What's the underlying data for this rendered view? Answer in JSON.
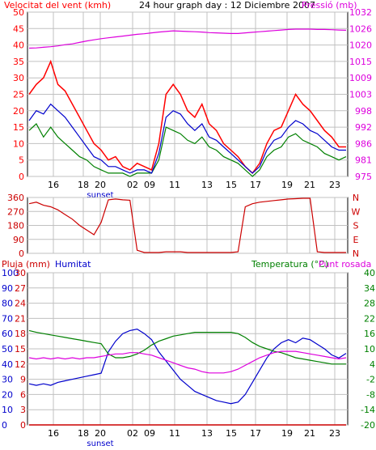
{
  "header": {
    "wind_label": "Velocitat del vent (kmh)",
    "title": "24 hour graph day : 12 Diciembre 2007",
    "pressure_label": "Pressió (mb)"
  },
  "colors": {
    "wind": "#ff0000",
    "gust": "#008000",
    "wind_avg": "#0000cc",
    "pressure": "#dd00dd",
    "direction": "#cc0000",
    "rain": "#cc0000",
    "humidity": "#0000cc",
    "temperature": "#008000",
    "dewpoint": "#dd00dd",
    "grid": "#c0c0c0"
  },
  "chart_data": [
    {
      "type": "line",
      "name": "wind-pressure",
      "x_ticks": [
        "16",
        "18",
        "20",
        "02",
        "09",
        "11",
        "13",
        "15",
        "17",
        "19",
        "21",
        "23"
      ],
      "x_marker": "sunset",
      "ylim_left": [
        0,
        50
      ],
      "yticks_left": [
        0,
        5,
        10,
        15,
        20,
        25,
        30,
        35,
        40,
        45,
        50
      ],
      "ylim_right": [
        975,
        1032
      ],
      "yticks_right": [
        975,
        981,
        986,
        992,
        998,
        1003,
        1009,
        1015,
        1020,
        1026,
        1032
      ],
      "series": [
        {
          "values": [
            25,
            28,
            30,
            35,
            28,
            26,
            22,
            18,
            14,
            10,
            8,
            5,
            6,
            3,
            2,
            4,
            3,
            2,
            10,
            25,
            28,
            25,
            20,
            18,
            22,
            16,
            14,
            10,
            8,
            6,
            3,
            1,
            4,
            10,
            14,
            15,
            20,
            25,
            22,
            20,
            17,
            14,
            12,
            9,
            9
          ]
        },
        {
          "values": [
            14,
            16,
            12,
            15,
            12,
            10,
            8,
            6,
            5,
            3,
            2,
            1,
            1,
            1,
            0,
            1,
            1,
            1,
            5,
            15,
            14,
            13,
            11,
            10,
            12,
            9,
            8,
            6,
            5,
            4,
            2,
            0,
            2,
            6,
            8,
            9,
            12,
            13,
            11,
            10,
            9,
            7,
            6,
            5,
            6
          ]
        },
        {
          "values": [
            17,
            20,
            19,
            22,
            20,
            18,
            15,
            12,
            9,
            6,
            5,
            3,
            3,
            2,
            1,
            2,
            2,
            1,
            7,
            18,
            20,
            19,
            16,
            14,
            16,
            12,
            11,
            9,
            7,
            5,
            3,
            1,
            3,
            8,
            11,
            12,
            15,
            17,
            16,
            14,
            13,
            11,
            9,
            8,
            8
          ]
        },
        {
          "values": [
            1019.5,
            1019.6,
            1019.8,
            1020.0,
            1020.3,
            1020.7,
            1021.0,
            1021.5,
            1022.0,
            1022.4,
            1022.8,
            1023.1,
            1023.4,
            1023.7,
            1024.0,
            1024.3,
            1024.5,
            1024.8,
            1025.1,
            1025.3,
            1025.5,
            1025.4,
            1025.3,
            1025.2,
            1025.1,
            1024.9,
            1024.8,
            1024.7,
            1024.6,
            1024.6,
            1024.8,
            1025.0,
            1025.2,
            1025.4,
            1025.6,
            1025.8,
            1026.0,
            1026.1,
            1026.1,
            1026.1,
            1026.0,
            1026.0,
            1025.9,
            1025.8,
            1025.7
          ]
        }
      ]
    },
    {
      "type": "line",
      "name": "wind-direction",
      "ylim": [
        0,
        360
      ],
      "yticks_left": [
        0,
        90,
        180,
        270,
        360
      ],
      "yticks_right": [
        "N",
        "E",
        "S",
        "W",
        "N"
      ],
      "series": [
        {
          "values": [
            320,
            330,
            310,
            300,
            280,
            250,
            220,
            180,
            150,
            120,
            200,
            345,
            350,
            345,
            342,
            20,
            5,
            5,
            5,
            10,
            10,
            10,
            5,
            5,
            5,
            5,
            5,
            5,
            5,
            10,
            300,
            320,
            330,
            335,
            340,
            345,
            350,
            352,
            355,
            355,
            10,
            5,
            5,
            5,
            5
          ]
        }
      ]
    },
    {
      "type": "line",
      "name": "rain-humidity-temperature",
      "x_ticks": [
        "16",
        "18",
        "20",
        "02",
        "09",
        "11",
        "13",
        "15",
        "17",
        "19",
        "21",
        "23"
      ],
      "x_marker": "sunset",
      "labels": {
        "rain": "Pluja (mm)",
        "humidity": "Humitat",
        "temperature": "Temperatura (°C)",
        "dewpoint": "Punt rosada"
      },
      "ylim_rain": [
        0,
        30
      ],
      "yticks_rain": [
        0,
        3,
        6,
        9,
        12,
        15,
        18,
        21,
        24,
        27,
        30
      ],
      "ylim_humidity": [
        0,
        100
      ],
      "yticks_humidity": [
        0,
        10,
        20,
        30,
        40,
        50,
        60,
        70,
        80,
        90,
        100
      ],
      "ylim_temperature": [
        -20,
        40
      ],
      "yticks_temperature": [
        -20,
        -14,
        -8,
        -2,
        4,
        10,
        16,
        22,
        28,
        34,
        40
      ],
      "series": [
        {
          "values": [
            0,
            0,
            0,
            0,
            0,
            0,
            0,
            0,
            0,
            0,
            0,
            0,
            0,
            0,
            0,
            0,
            0,
            0,
            0,
            0,
            0,
            0,
            0,
            0,
            0,
            0,
            0,
            0,
            0,
            0,
            0,
            0,
            0,
            0,
            0,
            0,
            0,
            0,
            0,
            0,
            0,
            0,
            0,
            0,
            0
          ]
        },
        {
          "values": [
            27,
            26,
            27,
            26,
            28,
            29,
            30,
            31,
            32,
            33,
            34,
            48,
            55,
            60,
            62,
            63,
            60,
            56,
            48,
            42,
            36,
            30,
            26,
            22,
            20,
            18,
            16,
            15,
            14,
            15,
            20,
            28,
            36,
            44,
            50,
            54,
            56,
            54,
            57,
            56,
            53,
            50,
            46,
            44,
            47
          ]
        },
        {
          "values": [
            17.2,
            16.5,
            16.0,
            15.5,
            15.0,
            14.5,
            14.0,
            13.5,
            13.0,
            12.5,
            12.0,
            8.0,
            6.5,
            6.5,
            7.0,
            8.0,
            9.5,
            11.5,
            13.0,
            14.0,
            15.0,
            15.5,
            16.0,
            16.5,
            16.5,
            16.5,
            16.5,
            16.5,
            16.5,
            16.0,
            14.5,
            12.5,
            11.0,
            10.0,
            9.0,
            8.5,
            7.5,
            6.5,
            6.0,
            5.5,
            5.0,
            4.5,
            4.0,
            4.0,
            4.0
          ]
        },
        {
          "values": [
            6.5,
            6.0,
            6.5,
            6.0,
            6.5,
            6.0,
            6.5,
            6.0,
            6.5,
            6.5,
            7.0,
            7.5,
            8.0,
            8.0,
            8.5,
            8.5,
            8.0,
            7.5,
            6.5,
            5.5,
            4.5,
            3.5,
            2.5,
            2.0,
            1.0,
            0.5,
            0.5,
            0.5,
            1.0,
            2.0,
            3.5,
            5.0,
            6.5,
            7.5,
            8.5,
            9.0,
            9.0,
            9.0,
            8.5,
            8.0,
            7.5,
            7.0,
            6.5,
            6.0,
            6.5
          ]
        }
      ]
    }
  ]
}
